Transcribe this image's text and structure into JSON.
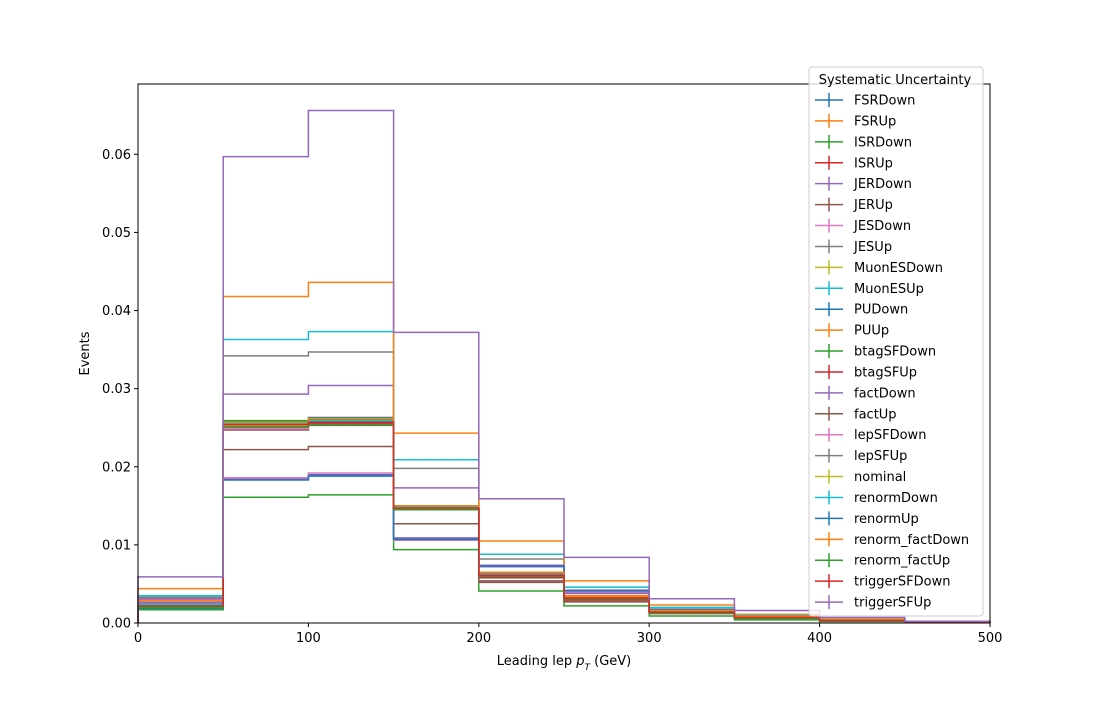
{
  "chart_data": {
    "type": "line",
    "style": "step histogram",
    "xlabel": {
      "prefix": "Leading lep ",
      "var": "p",
      "sub": "T",
      "suffix": " (GeV)"
    },
    "ylabel": "Events",
    "xlim": [
      0,
      500
    ],
    "ylim": [
      0,
      0.069
    ],
    "grid": false,
    "x_ticks": [
      0,
      100,
      200,
      300,
      400,
      500
    ],
    "x_tick_labels": [
      "0",
      "100",
      "200",
      "300",
      "400",
      "500"
    ],
    "y_ticks": [
      0,
      0.01,
      0.02,
      0.03,
      0.04,
      0.05,
      0.06
    ],
    "y_tick_labels": [
      "0.00",
      "0.01",
      "0.02",
      "0.03",
      "0.04",
      "0.05",
      "0.06"
    ],
    "bin_edges": [
      0,
      50,
      100,
      150,
      200,
      250,
      300,
      350,
      400,
      450,
      500
    ],
    "legend": {
      "title": "Systematic Uncertainty",
      "placement": "top-right"
    },
    "series": [
      {
        "name": "FSRDown",
        "color": "#1f77b4",
        "values": [
          0.0028,
          0.0185,
          0.019,
          0.0108,
          0.006,
          0.0032,
          0.0014,
          0.0007,
          0.0003,
          0.0001
        ]
      },
      {
        "name": "FSRUp",
        "color": "#ff7f0e",
        "values": [
          0.003,
          0.0253,
          0.0258,
          0.0148,
          0.0065,
          0.0035,
          0.0015,
          0.0008,
          0.0004,
          0.0002
        ]
      },
      {
        "name": "ISRDown",
        "color": "#2ca02c",
        "values": [
          0.0017,
          0.0161,
          0.0164,
          0.0094,
          0.0041,
          0.0022,
          0.0009,
          0.0004,
          0.0002,
          0.0001
        ]
      },
      {
        "name": "ISRUp",
        "color": "#d62728",
        "values": [
          0.002,
          0.025,
          0.0255,
          0.0146,
          0.0058,
          0.003,
          0.0013,
          0.0006,
          0.0003,
          0.0001
        ]
      },
      {
        "name": "JERDown",
        "color": "#9467bd",
        "values": [
          0.0031,
          0.0293,
          0.0304,
          0.0173,
          0.0072,
          0.0038,
          0.0016,
          0.0008,
          0.0004,
          0.0002
        ]
      },
      {
        "name": "JERUp",
        "color": "#8c564b",
        "values": [
          0.0025,
          0.0222,
          0.0226,
          0.0127,
          0.0052,
          0.0027,
          0.0012,
          0.0006,
          0.0003,
          0.0001
        ]
      },
      {
        "name": "JESDown",
        "color": "#e377c2",
        "values": [
          0.0029,
          0.0186,
          0.0192,
          0.0106,
          0.0061,
          0.0031,
          0.0014,
          0.0007,
          0.0003,
          0.0001
        ]
      },
      {
        "name": "JESUp",
        "color": "#7f7f7f",
        "values": [
          0.0033,
          0.0342,
          0.0347,
          0.0198,
          0.0082,
          0.0042,
          0.0018,
          0.0009,
          0.0004,
          0.0002
        ]
      },
      {
        "name": "MuonESDown",
        "color": "#bcbd22",
        "values": [
          0.0024,
          0.0255,
          0.0257,
          0.0147,
          0.0061,
          0.0032,
          0.0014,
          0.0007,
          0.0003,
          0.0001
        ]
      },
      {
        "name": "MuonESUp",
        "color": "#17becf",
        "values": [
          0.0035,
          0.0363,
          0.0373,
          0.0209,
          0.0088,
          0.0046,
          0.002,
          0.001,
          0.0005,
          0.0002
        ]
      },
      {
        "name": "PUDown",
        "color": "#1f77b4",
        "values": [
          0.0022,
          0.0258,
          0.0263,
          0.015,
          0.0063,
          0.0033,
          0.0015,
          0.0007,
          0.0003,
          0.0001
        ]
      },
      {
        "name": "PUUp",
        "color": "#ff7f0e",
        "values": [
          0.0044,
          0.0418,
          0.0436,
          0.0243,
          0.0105,
          0.0054,
          0.0023,
          0.0011,
          0.0005,
          0.0002
        ]
      },
      {
        "name": "btagSFDown",
        "color": "#2ca02c",
        "values": [
          0.0018,
          0.0259,
          0.026,
          0.015,
          0.0063,
          0.0033,
          0.0015,
          0.0007,
          0.0003,
          0.0001
        ]
      },
      {
        "name": "btagSFUp",
        "color": "#d62728",
        "values": [
          0.0021,
          0.0252,
          0.0256,
          0.0145,
          0.0059,
          0.0031,
          0.0014,
          0.0007,
          0.0003,
          0.0001
        ]
      },
      {
        "name": "factDown",
        "color": "#9467bd",
        "values": [
          0.0026,
          0.0184,
          0.0189,
          0.0109,
          0.0074,
          0.004,
          0.0017,
          0.0008,
          0.0004,
          0.0002
        ]
      },
      {
        "name": "factUp",
        "color": "#8c564b",
        "values": [
          0.0023,
          0.0247,
          0.0253,
          0.0146,
          0.0054,
          0.0028,
          0.0013,
          0.0006,
          0.0003,
          0.0001
        ]
      },
      {
        "name": "lepSFDown",
        "color": "#e377c2",
        "values": [
          0.0022,
          0.0249,
          0.0254,
          0.0146,
          0.006,
          0.0031,
          0.0014,
          0.0007,
          0.0003,
          0.0001
        ]
      },
      {
        "name": "lepSFUp",
        "color": "#7f7f7f",
        "values": [
          0.0024,
          0.0256,
          0.0258,
          0.0148,
          0.0063,
          0.0033,
          0.0015,
          0.0007,
          0.0003,
          0.0001
        ]
      },
      {
        "name": "nominal",
        "color": "#bcbd22",
        "values": [
          0.0023,
          0.0253,
          0.0257,
          0.0147,
          0.0061,
          0.0032,
          0.0014,
          0.0007,
          0.0003,
          0.0001
        ]
      },
      {
        "name": "renormDown",
        "color": "#17becf",
        "values": [
          0.0024,
          0.0255,
          0.0259,
          0.0148,
          0.0062,
          0.0033,
          0.0015,
          0.0007,
          0.0003,
          0.0001
        ]
      },
      {
        "name": "renormUp",
        "color": "#1f77b4",
        "values": [
          0.0019,
          0.0183,
          0.0188,
          0.0107,
          0.0073,
          0.0042,
          0.0017,
          0.0008,
          0.0004,
          0.0002
        ]
      },
      {
        "name": "renorm_factDown",
        "color": "#ff7f0e",
        "values": [
          0.0028,
          0.0257,
          0.0262,
          0.015,
          0.0065,
          0.0034,
          0.0016,
          0.0008,
          0.0004,
          0.0002
        ]
      },
      {
        "name": "renorm_factUp",
        "color": "#2ca02c",
        "values": [
          0.002,
          0.0251,
          0.0254,
          0.0145,
          0.006,
          0.0031,
          0.0013,
          0.0006,
          0.0003,
          0.0001
        ]
      },
      {
        "name": "triggerSFDown",
        "color": "#d62728",
        "values": [
          0.0022,
          0.0254,
          0.0257,
          0.0147,
          0.0061,
          0.0032,
          0.0014,
          0.0007,
          0.0003,
          0.0001
        ]
      },
      {
        "name": "triggerSFUp",
        "color": "#9467bd",
        "values": [
          0.0059,
          0.0597,
          0.0656,
          0.0372,
          0.0159,
          0.0084,
          0.0031,
          0.0016,
          0.0007,
          0.0002
        ]
      }
    ]
  }
}
